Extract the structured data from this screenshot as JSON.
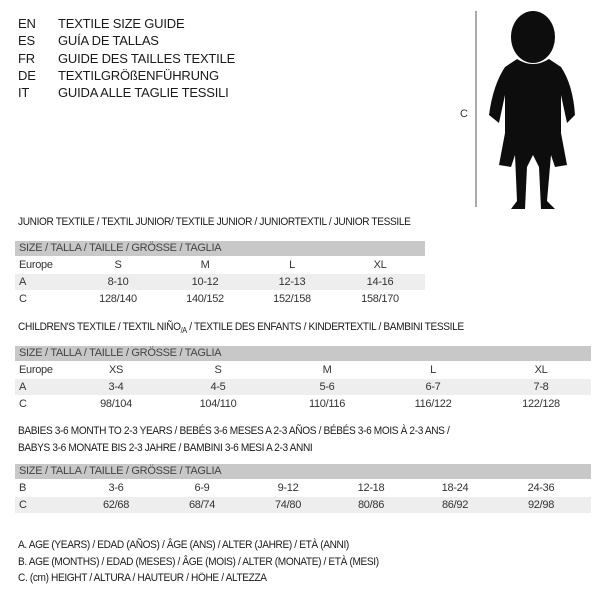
{
  "languages": [
    {
      "code": "EN",
      "title": "TEXTILE SIZE GUIDE"
    },
    {
      "code": "ES",
      "title": "GUÍA DE TALLAS"
    },
    {
      "code": "FR",
      "title": "GUIDE DES TAILLES TEXTILE"
    },
    {
      "code": "DE",
      "title": "TEXTILGRÖßENFÜHRUNG"
    },
    {
      "code": "IT",
      "title": "GUIDA ALLE TAGLIE TESSILI"
    }
  ],
  "figure": {
    "label": "C"
  },
  "junior": {
    "title": "JUNIOR TEXTILE / TEXTIL JUNIOR/ TEXTILE JUNIOR / JUNIORTEXTIL / JUNIOR TESSILE",
    "header": "SIZE / TALLA / TAILLE / GRÖSSE / TAGLIA",
    "rows": [
      {
        "label": "Europe",
        "values": [
          "S",
          "M",
          "L",
          "XL"
        ]
      },
      {
        "label": "A",
        "values": [
          "8-10",
          "10-12",
          "12-13",
          "14-16"
        ]
      },
      {
        "label": "C",
        "values": [
          "128/140",
          "140/152",
          "152/158",
          "158/170"
        ]
      }
    ]
  },
  "children": {
    "title": "CHILDREN'S TEXTILE / TEXTIL NIÑO/A / TEXTILE DES ENFANTS / KINDERTEXTIL / BAMBINI TESSILE",
    "header": "SIZE / TALLA / TAILLE / GRÖSSE / TAGLIA",
    "rows": [
      {
        "label": "Europe",
        "values": [
          "XS",
          "S",
          "M",
          "L",
          "XL"
        ]
      },
      {
        "label": "A",
        "values": [
          "3-4",
          "4-5",
          "5-6",
          "6-7",
          "7-8"
        ]
      },
      {
        "label": "C",
        "values": [
          "98/104",
          "104/110",
          "110/116",
          "116/122",
          "122/128"
        ]
      }
    ]
  },
  "babies": {
    "title_line1": "BABIES 3-6 MONTH TO 2-3 YEARS / BEBÉS 3-6 MESES A 2-3 AÑOS / BÉBÉS 3-6 MOIS À 2-3 ANS /",
    "title_line2": "BABYS 3-6 MONATE BIS 2-3 JAHRE / BAMBINI 3-6 MESI A 2-3 ANNI",
    "header": "SIZE / TALLA / TAILLE / GRÖSSE / TAGLIA",
    "rows": [
      {
        "label": "B",
        "values": [
          "3-6",
          "6-9",
          "9-12",
          "12-18",
          "18-24",
          "24-36"
        ]
      },
      {
        "label": "C",
        "values": [
          "62/68",
          "68/74",
          "74/80",
          "80/86",
          "86/92",
          "92/98"
        ]
      }
    ]
  },
  "legend": [
    "A. AGE (YEARS) / EDAD (AÑOS) / ÂGE (ANS) / ALTER (JAHRE) / ETÀ (ANNI)",
    "B. AGE (MONTHS) / EDAD (MESES) / ÂGE (MOIS) / ALTER (MONATE) / ETÀ (MESI)",
    "C. (cm) HEIGHT / ALTURA / HAUTEUR / HÖHE / ALTEZZA"
  ]
}
